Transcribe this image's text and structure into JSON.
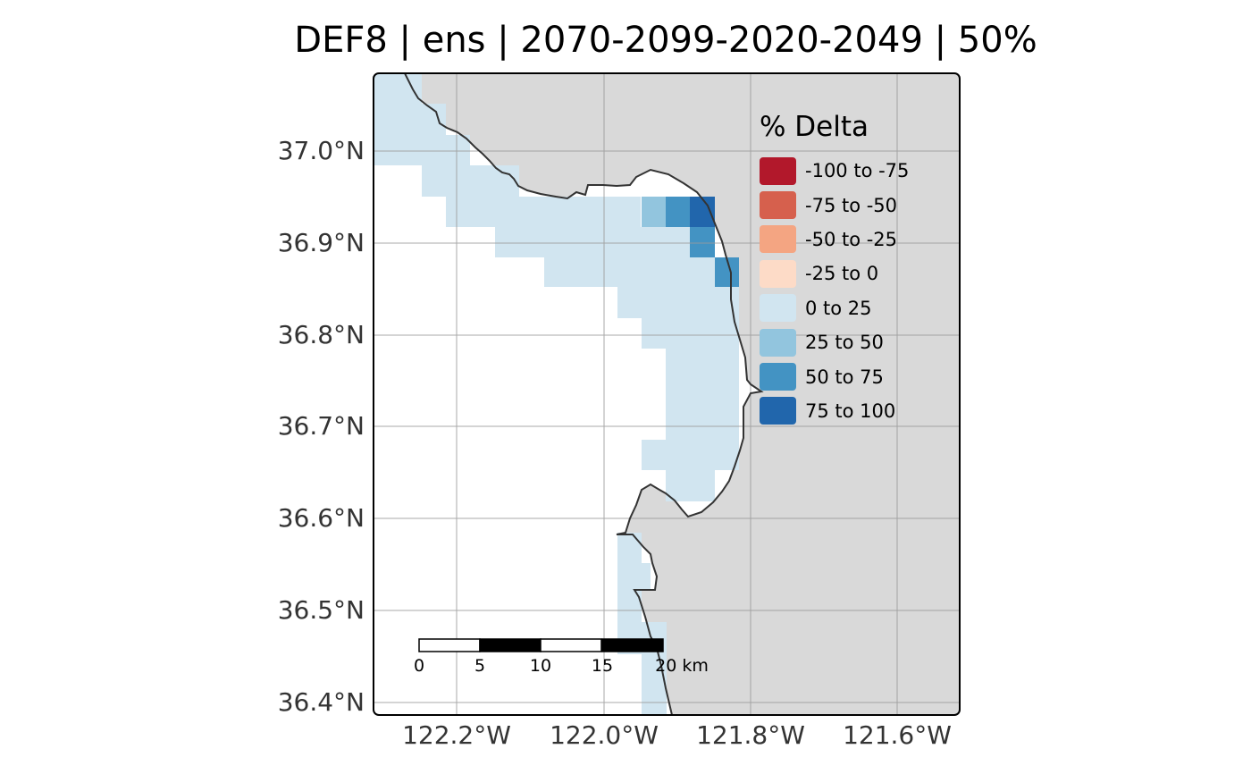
{
  "title": "DEF8 | ens | 2070-2099-2020-2049 | 50%",
  "axes": {
    "y_ticks": [
      "37.0°N",
      "36.9°N",
      "36.8°N",
      "36.7°N",
      "36.6°N",
      "36.5°N",
      "36.4°N"
    ],
    "x_ticks": [
      "122.2°W",
      "122.0°W",
      "121.8°W",
      "121.6°W"
    ]
  },
  "legend": {
    "title": "% Delta",
    "items": [
      {
        "label": "-100 to -75",
        "color": "#b2182b"
      },
      {
        "label": "-75 to -50",
        "color": "#d6604d"
      },
      {
        "label": "-50 to -25",
        "color": "#f4a582"
      },
      {
        "label": "-25 to 0",
        "color": "#fddbc7"
      },
      {
        "label": "0 to 25",
        "color": "#d1e5f0"
      },
      {
        "label": "25 to 50",
        "color": "#92c5de"
      },
      {
        "label": "50 to 75",
        "color": "#4393c3"
      },
      {
        "label": "75 to 100",
        "color": "#2166ac"
      }
    ]
  },
  "scale_bar": {
    "labels": [
      "0",
      "5",
      "10",
      "15",
      "20 km"
    ]
  },
  "colors": {
    "land": "#d9d9d9",
    "ocean": "#ffffff",
    "coastline": "#333333",
    "graticule": "#9a9a9a",
    "frame": "#000000"
  }
}
